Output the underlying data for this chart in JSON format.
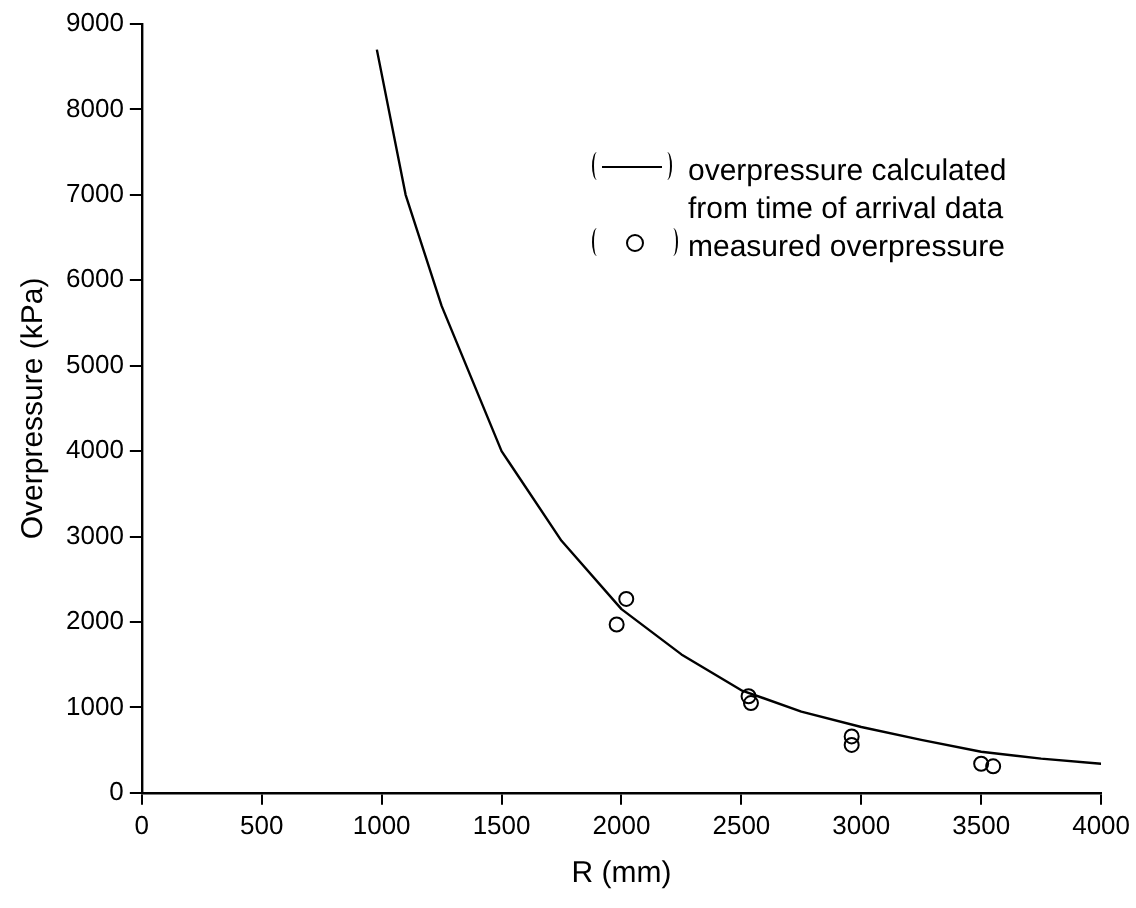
{
  "chart_data": {
    "type": "line",
    "xlabel": "R (mm)",
    "ylabel": "Overpressure (kPa)",
    "xlim": [
      0,
      4000
    ],
    "xticks": [
      0,
      500,
      1000,
      1500,
      2000,
      2500,
      3000,
      3500,
      4000
    ],
    "ylim": [
      0,
      9000
    ],
    "yticks": [
      0,
      1000,
      2000,
      3000,
      4000,
      5000,
      6000,
      7000,
      8000,
      9000
    ],
    "grid": false,
    "legend": "top right",
    "series": [
      {
        "name": "overpressure calculated from time of arrival data",
        "type": "line",
        "color": "#000000",
        "marker": "none",
        "line_style": "solid",
        "x": [
          980,
          1100,
          1250,
          1500,
          1750,
          2000,
          2250,
          2500,
          2750,
          3000,
          3250,
          3500,
          3750,
          4000
        ],
        "values": [
          8700,
          7000,
          5700,
          4000,
          2950,
          2150,
          1620,
          1200,
          950,
          770,
          620,
          480,
          400,
          340
        ]
      },
      {
        "name": "measured overpressure",
        "type": "scatter",
        "color": "#000000",
        "marker": "circle",
        "x": [
          1980,
          2020,
          2530,
          2540,
          2960,
          2960,
          3500,
          3550
        ],
        "values": [
          1970,
          2270,
          1130,
          1050,
          660,
          560,
          340,
          310
        ]
      }
    ]
  }
}
